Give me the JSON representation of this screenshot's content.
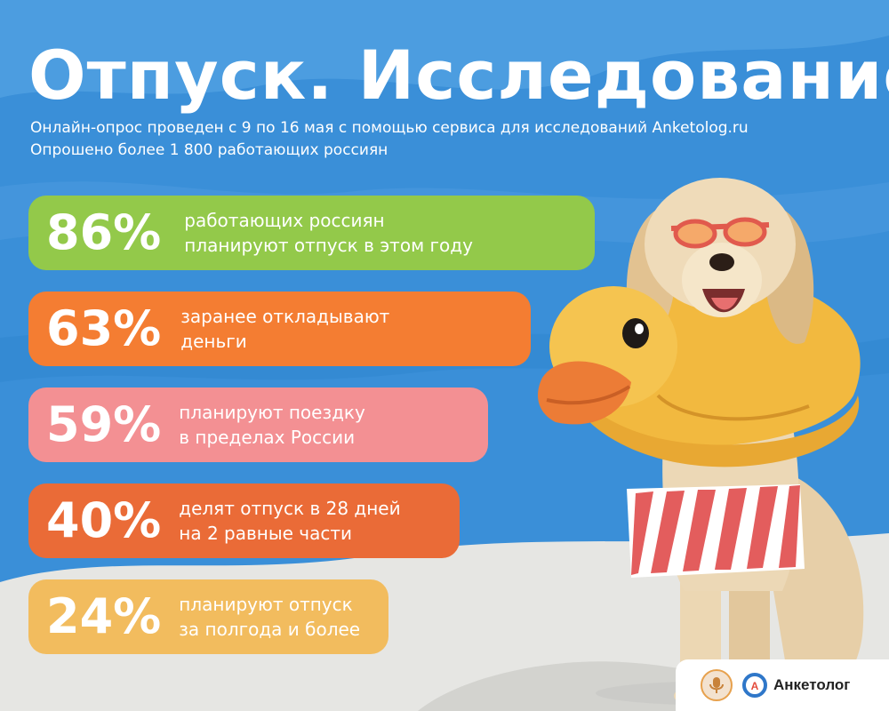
{
  "title": "Отпуск. Исследование",
  "subtitle": [
    "Онлайн-опрос проведен с 9 по 16 мая с помощью сервиса для исследований Anketolog.ru",
    "Опрошено более 1 800 работающих россиян"
  ],
  "stats": [
    {
      "percent": "86%",
      "line1": "работающих россиян",
      "line2": "планируют отпуск в этом году",
      "color": "#93c94a"
    },
    {
      "percent": "63%",
      "line1": "заранее откладывают",
      "line2": "деньги",
      "color": "#f47d32"
    },
    {
      "percent": "59%",
      "line1": "планируют поездку",
      "line2": "в пределах России",
      "color": "#f39093"
    },
    {
      "percent": "40%",
      "line1": "делят отпуск в 28 дней",
      "line2": "на 2 равные части",
      "color": "#ea6b37"
    },
    {
      "percent": "24%",
      "line1": "планируют отпуск",
      "line2": "за полгода и более",
      "color": "#f2bc5e"
    }
  ],
  "brand": {
    "name": "Анкетолог",
    "icon": "anketolog-logo-icon",
    "partner_icon": "microphone-badge-icon"
  },
  "colors": {
    "sky_blue": "#3a8fd8",
    "sand": "#e6e6e3",
    "duck_yellow": "#f2bb45",
    "beak_orange": "#ec7c36"
  }
}
